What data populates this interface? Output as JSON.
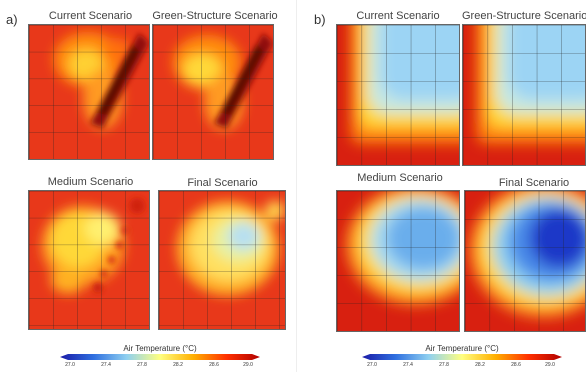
{
  "figure": {
    "left_panel": {
      "letter": "a)",
      "maps": [
        {
          "title": "Current Scenario"
        },
        {
          "title": "Green-Structure Scenario"
        },
        {
          "title": "Medium Scenario"
        },
        {
          "title": "Final Scenario"
        }
      ]
    },
    "right_panel": {
      "letter": "b)",
      "maps": [
        {
          "title": "Current Scenario"
        },
        {
          "title": "Green-Structure Scenario"
        },
        {
          "title": "Medium Scenario"
        },
        {
          "title": "Final Scenario"
        }
      ]
    },
    "colorbar": {
      "title": "Air Temperature (°C)",
      "ticks": [
        "27.0",
        "27.4",
        "27.8",
        "28.2",
        "28.6",
        "29.0"
      ],
      "colors": [
        "#1a1aa6",
        "#2f6fe0",
        "#8fd0f0",
        "#ffff80",
        "#ffb000",
        "#ff3000",
        "#b00000"
      ]
    }
  }
}
